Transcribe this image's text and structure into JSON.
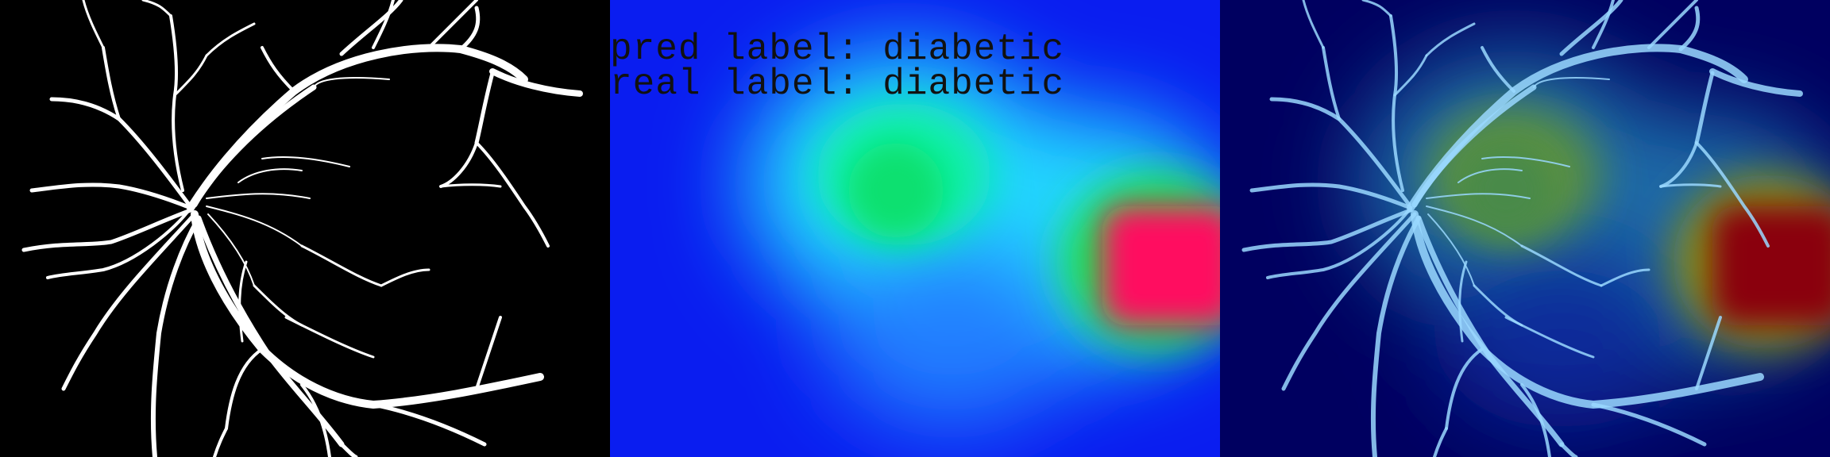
{
  "panels": {
    "segmentation": {},
    "heatmap": {
      "pred_label": "pred label: diabetic",
      "real_label": "real label: diabetic"
    },
    "overlay": {}
  }
}
